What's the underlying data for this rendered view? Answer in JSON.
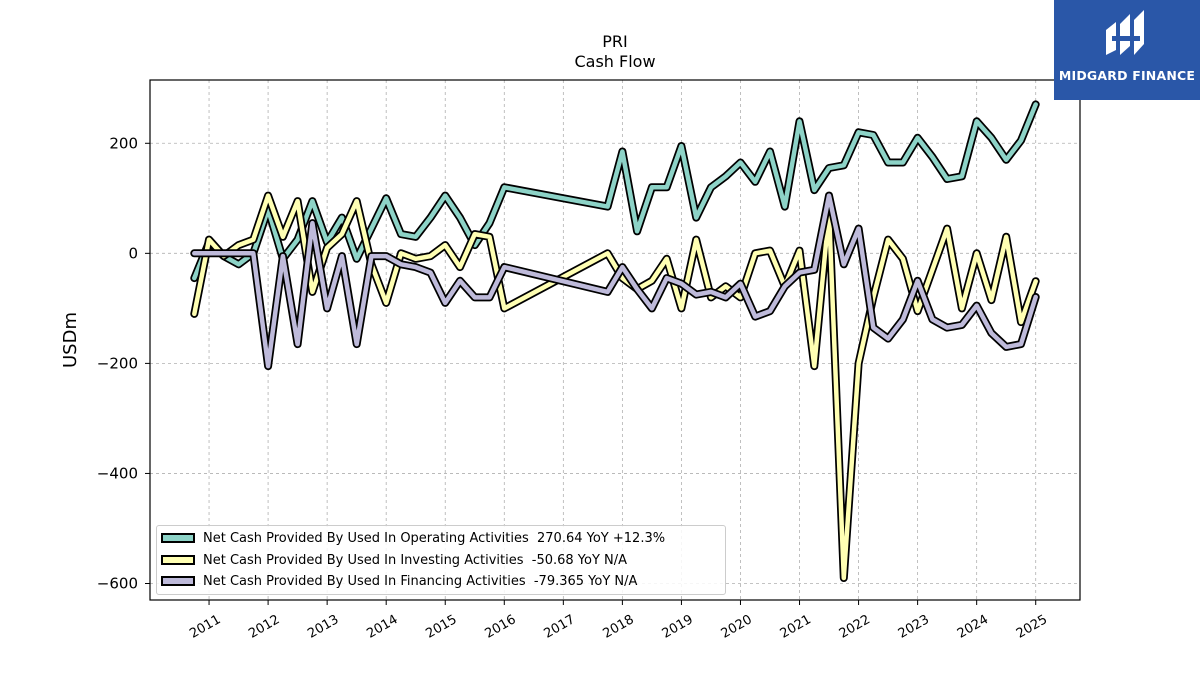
{
  "chart_data": {
    "type": "line",
    "title": "PRI",
    "subtitle": "Cash Flow",
    "xlabel": "",
    "ylabel": "USDm",
    "xlim": [
      2010.0,
      2025.75
    ],
    "ylim": [
      -630,
      315
    ],
    "x_ticks": [
      "2011",
      "2012",
      "2013",
      "2014",
      "2015",
      "2016",
      "2017",
      "2018",
      "2019",
      "2020",
      "2021",
      "2022",
      "2023",
      "2024",
      "2025"
    ],
    "y_ticks": [
      "200",
      "0",
      "−200",
      "−400",
      "−600"
    ],
    "grid": true,
    "legend_position": "lower-left",
    "series": [
      {
        "name": "Net Cash Provided By Used In Operating Activities",
        "legend_label": "Net Cash Provided By Used In Operating Activities  270.64 YoY +12.3%",
        "color": "#8dd3c7",
        "points": [
          [
            2010.75,
            -45
          ],
          [
            2011.0,
            20
          ],
          [
            2011.25,
            -5
          ],
          [
            2011.5,
            -20
          ],
          [
            2011.75,
            0
          ],
          [
            2012.0,
            80
          ],
          [
            2012.25,
            -10
          ],
          [
            2012.5,
            25
          ],
          [
            2012.75,
            95
          ],
          [
            2013.0,
            20
          ],
          [
            2013.25,
            65
          ],
          [
            2013.5,
            -10
          ],
          [
            2013.75,
            45
          ],
          [
            2014.0,
            100
          ],
          [
            2014.25,
            35
          ],
          [
            2014.5,
            30
          ],
          [
            2014.75,
            65
          ],
          [
            2015.0,
            105
          ],
          [
            2015.25,
            65
          ],
          [
            2015.5,
            15
          ],
          [
            2015.75,
            55
          ],
          [
            2016.0,
            120
          ],
          [
            2017.75,
            85
          ],
          [
            2018.0,
            185
          ],
          [
            2018.25,
            40
          ],
          [
            2018.5,
            120
          ],
          [
            2018.75,
            120
          ],
          [
            2019.0,
            195
          ],
          [
            2019.25,
            65
          ],
          [
            2019.5,
            120
          ],
          [
            2019.75,
            140
          ],
          [
            2020.0,
            165
          ],
          [
            2020.25,
            130
          ],
          [
            2020.5,
            185
          ],
          [
            2020.75,
            85
          ],
          [
            2021.0,
            240
          ],
          [
            2021.25,
            115
          ],
          [
            2021.5,
            155
          ],
          [
            2021.75,
            160
          ],
          [
            2022.0,
            220
          ],
          [
            2022.25,
            215
          ],
          [
            2022.5,
            165
          ],
          [
            2022.75,
            165
          ],
          [
            2023.0,
            210
          ],
          [
            2023.25,
            175
          ],
          [
            2023.5,
            135
          ],
          [
            2023.75,
            140
          ],
          [
            2024.0,
            240
          ],
          [
            2024.25,
            210
          ],
          [
            2024.5,
            170
          ],
          [
            2024.75,
            205
          ],
          [
            2025.0,
            270.64
          ]
        ]
      },
      {
        "name": "Net Cash Provided By Used In Investing Activities",
        "legend_label": "Net Cash Provided By Used In Investing Activities  -50.68 YoY N/A",
        "color": "#ffffb3",
        "points": [
          [
            2010.75,
            -110
          ],
          [
            2011.0,
            25
          ],
          [
            2011.25,
            -5
          ],
          [
            2011.5,
            15
          ],
          [
            2011.75,
            25
          ],
          [
            2012.0,
            105
          ],
          [
            2012.25,
            30
          ],
          [
            2012.5,
            95
          ],
          [
            2012.75,
            -70
          ],
          [
            2013.0,
            10
          ],
          [
            2013.25,
            35
          ],
          [
            2013.5,
            95
          ],
          [
            2013.75,
            -20
          ],
          [
            2014.0,
            -90
          ],
          [
            2014.25,
            0
          ],
          [
            2014.5,
            -10
          ],
          [
            2014.75,
            -5
          ],
          [
            2015.0,
            15
          ],
          [
            2015.25,
            -25
          ],
          [
            2015.5,
            35
          ],
          [
            2015.75,
            30
          ],
          [
            2016.0,
            -100
          ],
          [
            2017.75,
            0
          ],
          [
            2018.0,
            -45
          ],
          [
            2018.25,
            -65
          ],
          [
            2018.5,
            -50
          ],
          [
            2018.75,
            -10
          ],
          [
            2019.0,
            -100
          ],
          [
            2019.25,
            25
          ],
          [
            2019.5,
            -80
          ],
          [
            2019.75,
            -60
          ],
          [
            2020.0,
            -80
          ],
          [
            2020.25,
            0
          ],
          [
            2020.5,
            5
          ],
          [
            2020.75,
            -60
          ],
          [
            2021.0,
            5
          ],
          [
            2021.25,
            -205
          ],
          [
            2021.5,
            75
          ],
          [
            2021.75,
            -590
          ],
          [
            2022.0,
            -200
          ],
          [
            2022.25,
            -80
          ],
          [
            2022.5,
            25
          ],
          [
            2022.75,
            -10
          ],
          [
            2023.0,
            -105
          ],
          [
            2023.25,
            -30
          ],
          [
            2023.5,
            45
          ],
          [
            2023.75,
            -100
          ],
          [
            2024.0,
            0
          ],
          [
            2024.25,
            -85
          ],
          [
            2024.5,
            30
          ],
          [
            2024.75,
            -125
          ],
          [
            2025.0,
            -50.68
          ]
        ]
      },
      {
        "name": "Net Cash Provided By Used In Financing Activities",
        "legend_label": "Net Cash Provided By Used In Financing Activities  -79.365 YoY N/A",
        "color": "#bebada",
        "points": [
          [
            2010.75,
            0
          ],
          [
            2011.75,
            0
          ],
          [
            2012.0,
            -205
          ],
          [
            2012.25,
            -5
          ],
          [
            2012.5,
            -165
          ],
          [
            2012.75,
            55
          ],
          [
            2013.0,
            -100
          ],
          [
            2013.25,
            -5
          ],
          [
            2013.5,
            -165
          ],
          [
            2013.75,
            -5
          ],
          [
            2014.0,
            -5
          ],
          [
            2014.25,
            -20
          ],
          [
            2014.5,
            -25
          ],
          [
            2014.75,
            -35
          ],
          [
            2015.0,
            -90
          ],
          [
            2015.25,
            -50
          ],
          [
            2015.5,
            -80
          ],
          [
            2015.75,
            -80
          ],
          [
            2016.0,
            -25
          ],
          [
            2017.75,
            -70
          ],
          [
            2018.0,
            -25
          ],
          [
            2018.25,
            -65
          ],
          [
            2018.5,
            -100
          ],
          [
            2018.75,
            -45
          ],
          [
            2019.0,
            -55
          ],
          [
            2019.25,
            -75
          ],
          [
            2019.5,
            -70
          ],
          [
            2019.75,
            -80
          ],
          [
            2020.0,
            -55
          ],
          [
            2020.25,
            -115
          ],
          [
            2020.5,
            -105
          ],
          [
            2020.75,
            -60
          ],
          [
            2021.0,
            -35
          ],
          [
            2021.25,
            -30
          ],
          [
            2021.5,
            105
          ],
          [
            2021.75,
            -20
          ],
          [
            2022.0,
            45
          ],
          [
            2022.25,
            -135
          ],
          [
            2022.5,
            -155
          ],
          [
            2022.75,
            -120
          ],
          [
            2023.0,
            -50
          ],
          [
            2023.25,
            -120
          ],
          [
            2023.5,
            -135
          ],
          [
            2023.75,
            -130
          ],
          [
            2024.0,
            -95
          ],
          [
            2024.25,
            -145
          ],
          [
            2024.5,
            -170
          ],
          [
            2024.75,
            -165
          ],
          [
            2025.0,
            -79.365
          ]
        ]
      }
    ]
  },
  "logo": {
    "text": "MIDGARD FINANCE",
    "icon": "midgard-logo-icon",
    "bg_color": "#2a57a8"
  }
}
